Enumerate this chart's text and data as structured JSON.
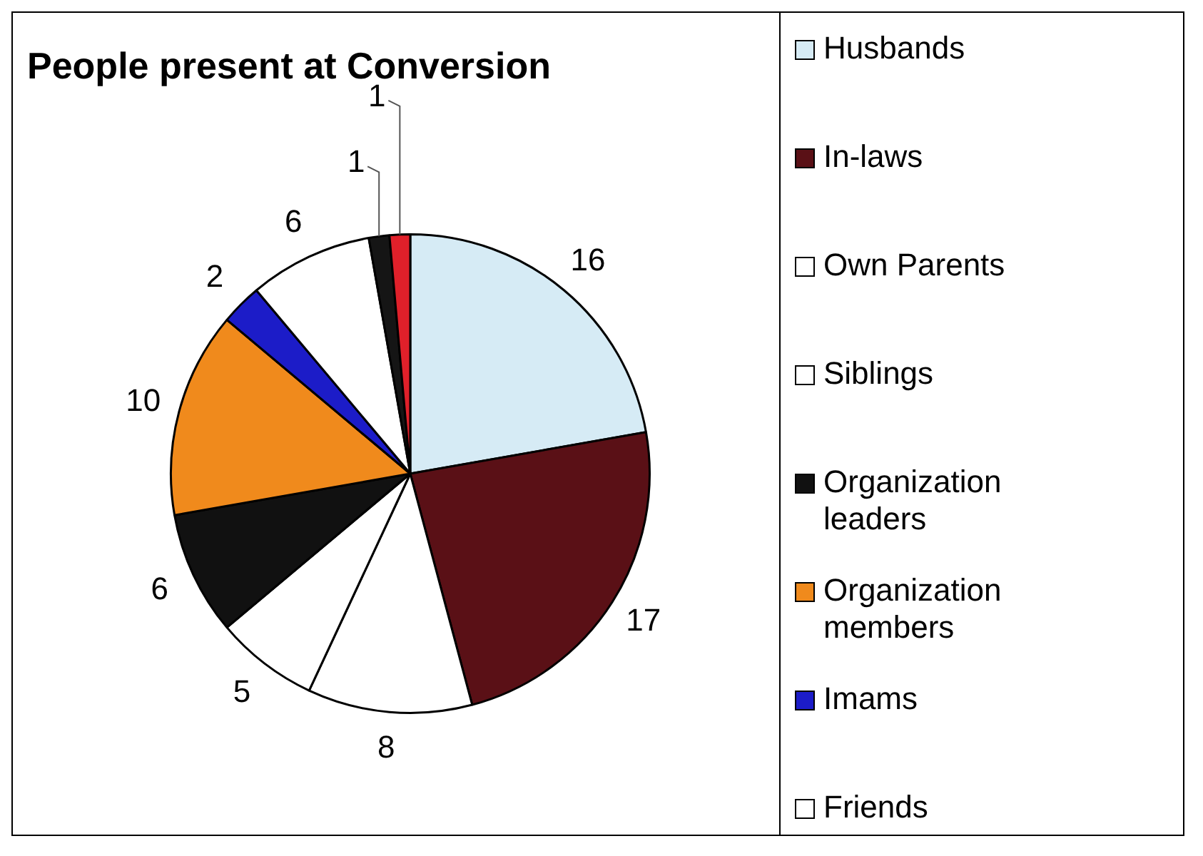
{
  "chart_data": {
    "type": "pie",
    "title": "People present at Conversion",
    "categories": [
      "Husbands",
      "In-laws",
      "Own Parents",
      "Siblings",
      "Organization leaders",
      "Organization members",
      "Imams",
      "Friends",
      null,
      null
    ],
    "values": [
      16,
      17,
      8,
      5,
      6,
      10,
      2,
      6,
      1,
      1
    ],
    "colors": [
      "#d6ebf5",
      "#5a1016",
      "#ffffff",
      "#ffffff",
      "#111111",
      "#f08a1c",
      "#1c1cc8",
      "#ffffff",
      "#151515",
      "#e0202a"
    ],
    "data_labels": true,
    "legend": "right"
  }
}
